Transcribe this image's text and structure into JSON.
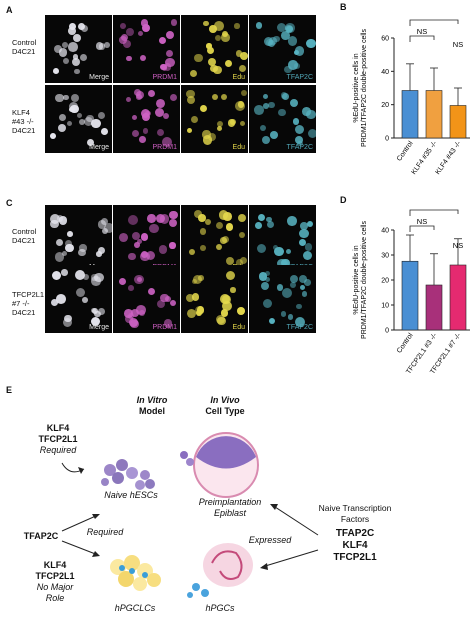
{
  "figure": {
    "panel_letters": {
      "a": "A",
      "b": "B",
      "c": "C",
      "d": "D",
      "e": "E"
    },
    "panel_a": {
      "row_labels": [
        [
          "Control",
          "D4C21"
        ],
        [
          "KLF4",
          "#43 -/-",
          "D4C21"
        ]
      ],
      "channels": [
        "Merge",
        "PRDM1",
        "Edu",
        "TFAP2C"
      ],
      "channel_colors": {
        "Merge": "#e8e8e8",
        "PRDM1": "#d05fc4",
        "Edu": "#e3d64a",
        "TFAP2C": "#52a8b8"
      }
    },
    "panel_c": {
      "row_labels": [
        [
          "Control",
          "D4C21"
        ],
        [
          "TFCP2L1",
          "#7 -/-",
          "D4C21"
        ]
      ],
      "channels": [
        "Merge",
        "PRDM1",
        "Edu",
        "TFAP2C"
      ]
    },
    "panel_e": {
      "in_vitro_title": "In Vitro",
      "in_vitro_subtitle": "Model",
      "in_vivo_title": "In Vivo",
      "in_vivo_subtitle": "Cell Type",
      "klf4_top": "KLF4",
      "tfcp2l1_top": "TFCP2L1",
      "required_top": "Required",
      "naive_hescs": "Naive hESCs",
      "preimplantation": "Preimplantation",
      "epiblast": "Epiblast",
      "tfap2c_left": "TFAP2C",
      "required_mid": "Required",
      "klf4_bottom": "KLF4",
      "tfcp2l1_bottom": "TFCP2L1",
      "no_major": "No Major",
      "role": "Role",
      "hpgclcs": "hPGCLCs",
      "hpgcs": "hPGCs",
      "naive_tf_line1": "Naive Transcription",
      "naive_tf_line2": "Factors",
      "tf_right_1": "TFAP2C",
      "tf_right_2": "KLF4",
      "tf_right_3": "TFCP2L1",
      "expressed": "Expressed"
    }
  },
  "chart_data": [
    {
      "type": "bar",
      "panel": "B",
      "categories": [
        "Control",
        "KLF4 #35 -/-",
        "KLF4 #43 -/-"
      ],
      "values": [
        28.5,
        28.5,
        19.5
      ],
      "error_upper": [
        44.5,
        42,
        30
      ],
      "colors": [
        "#4a8fd3",
        "#f0a040",
        "#f29418"
      ],
      "ylabel": "%EdU-positive cells in PRDM1/TFAP2C double-positive cells",
      "ylim": [
        0,
        60
      ],
      "yticks": [
        0,
        20,
        40,
        60
      ],
      "annotations": [
        "NS",
        "NS"
      ]
    },
    {
      "type": "bar",
      "panel": "D",
      "categories": [
        "Control",
        "TFCP2L1 #3 -/-",
        "TFCP2L1 #7 -/-"
      ],
      "values": [
        27.5,
        18,
        26
      ],
      "error_upper": [
        38,
        30.5,
        36.5
      ],
      "colors": [
        "#4a8fd3",
        "#a8307a",
        "#e52a70"
      ],
      "ylabel": "%EdU-positive cells in PRDM1/TFAP2C double-positive cells",
      "ylim": [
        0,
        40
      ],
      "yticks": [
        0,
        10,
        20,
        30,
        40
      ],
      "annotations": [
        "NS",
        "NS"
      ]
    }
  ]
}
